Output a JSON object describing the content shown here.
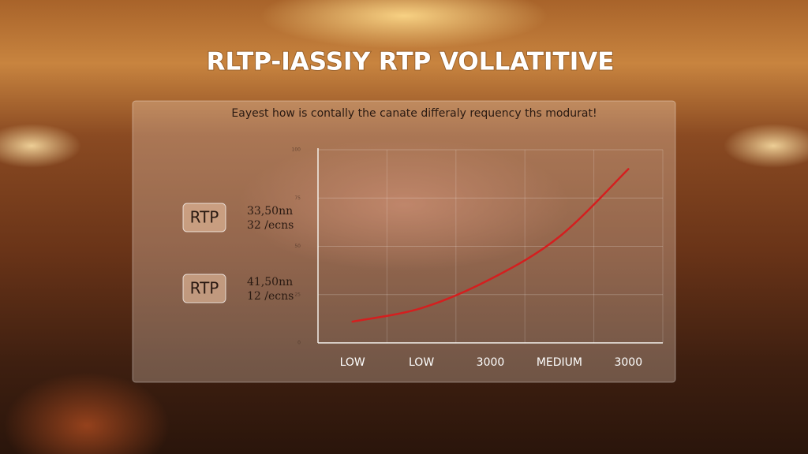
{
  "chart_data": {
    "type": "line",
    "title": "RLTP-IASSIY RTP VOLLATITIVE",
    "subtitle": "Eayest how is contally the canate differaly requency ths modurat!",
    "categories": [
      "LOW",
      "LOW",
      "3000",
      "MEDIUM",
      "3000"
    ],
    "series": [
      {
        "name": "RTP",
        "color": "#d41f1f",
        "values": [
          11,
          18,
          33,
          55,
          90
        ]
      }
    ],
    "ylim": [
      0,
      100
    ],
    "yticks": [
      0,
      25,
      50,
      75,
      100
    ],
    "grid": true,
    "annotations": [
      {
        "badge": "RTP",
        "lines": [
          "33,50nn",
          "32 /ecns"
        ]
      },
      {
        "badge": "RTP",
        "lines": [
          "41,50nn",
          "12 /ecns"
        ]
      }
    ]
  }
}
